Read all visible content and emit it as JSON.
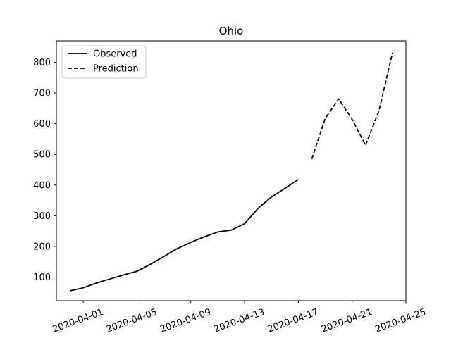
{
  "chart_data": {
    "type": "line",
    "title": "Ohio",
    "xlabel": "",
    "ylabel": "",
    "x_type": "date",
    "xlim": [
      "2020-03-30",
      "2020-04-25"
    ],
    "ylim": [
      23,
      870
    ],
    "grid": false,
    "legend_position": "upper-left",
    "x_ticks": [
      "2020-04-01",
      "2020-04-05",
      "2020-04-09",
      "2020-04-13",
      "2020-04-17",
      "2020-04-21",
      "2020-04-25"
    ],
    "y_ticks": [
      100,
      200,
      300,
      400,
      500,
      600,
      700,
      800
    ],
    "series": [
      {
        "name": "Observed",
        "style": "solid",
        "color": "#000000",
        "points": [
          {
            "x": "2020-03-31",
            "y": 55
          },
          {
            "x": "2020-04-01",
            "y": 65
          },
          {
            "x": "2020-04-02",
            "y": 81
          },
          {
            "x": "2020-04-03",
            "y": 94
          },
          {
            "x": "2020-04-04",
            "y": 107
          },
          {
            "x": "2020-04-05",
            "y": 119
          },
          {
            "x": "2020-04-06",
            "y": 142
          },
          {
            "x": "2020-04-07",
            "y": 167
          },
          {
            "x": "2020-04-08",
            "y": 193
          },
          {
            "x": "2020-04-09",
            "y": 213
          },
          {
            "x": "2020-04-10",
            "y": 231
          },
          {
            "x": "2020-04-11",
            "y": 247
          },
          {
            "x": "2020-04-12",
            "y": 253
          },
          {
            "x": "2020-04-13",
            "y": 274
          },
          {
            "x": "2020-04-14",
            "y": 324
          },
          {
            "x": "2020-04-15",
            "y": 361
          },
          {
            "x": "2020-04-16",
            "y": 389
          },
          {
            "x": "2020-04-17",
            "y": 418
          }
        ]
      },
      {
        "name": "Prediction",
        "style": "dashed",
        "color": "#000000",
        "points": [
          {
            "x": "2020-04-18",
            "y": 485
          },
          {
            "x": "2020-04-19",
            "y": 617
          },
          {
            "x": "2020-04-20",
            "y": 681
          },
          {
            "x": "2020-04-21",
            "y": 614
          },
          {
            "x": "2020-04-22",
            "y": 530
          },
          {
            "x": "2020-04-23",
            "y": 643
          },
          {
            "x": "2020-04-24",
            "y": 831
          }
        ]
      }
    ]
  }
}
